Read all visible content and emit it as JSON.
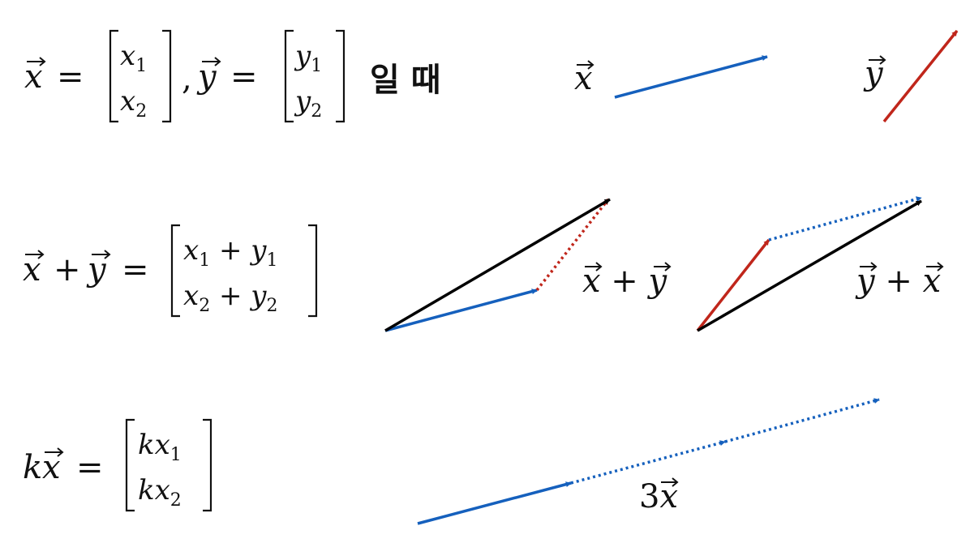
{
  "formulas": {
    "def": {
      "x_name": "x",
      "equals": "=",
      "x_top": "x",
      "x_top_sub": "1",
      "x_bot": "x",
      "x_bot_sub": "2",
      "comma": ",",
      "y_name": "y",
      "y_top": "y",
      "y_top_sub": "1",
      "y_bot": "y",
      "y_bot_sub": "2",
      "korean_when": "일 때"
    },
    "sum": {
      "lhs_x": "x",
      "plus": "+",
      "lhs_y": "y",
      "equals": "=",
      "top": [
        "x",
        "1",
        " + ",
        "y",
        "1"
      ],
      "bot": [
        "x",
        "2",
        " + ",
        "y",
        "2"
      ]
    },
    "scalar": {
      "k": "k",
      "x": "x",
      "equals": "=",
      "top": [
        "kx",
        "1"
      ],
      "bot": [
        "kx",
        "2"
      ]
    }
  },
  "labels": {
    "x_vec": "x",
    "y_vec": "y",
    "x_plus_y": [
      "x",
      " + ",
      "y"
    ],
    "y_plus_x": [
      "y",
      " + ",
      "x"
    ],
    "three_x": [
      "3",
      "x"
    ]
  },
  "colors": {
    "x_vector": "#1560bd",
    "y_vector": "#c0261b",
    "sum_vector": "#000000"
  }
}
